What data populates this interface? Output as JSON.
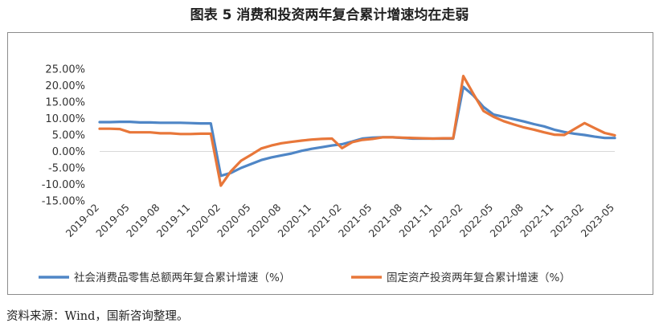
{
  "title": "图表 5 消费和投资两年复合累计增速均在走弱",
  "source": "资料来源：Wind，国新咨询整理。",
  "colors": {
    "series_1": "#4f86c6",
    "series_2": "#e8773a",
    "axis": "#d9d9d9",
    "text": "#333333"
  },
  "chart_data": {
    "type": "line",
    "title": "",
    "xlabel": "",
    "ylabel": "",
    "ylim": [
      -15,
      25
    ],
    "y_ticks": [
      25,
      20,
      15,
      10,
      5,
      0,
      -5,
      -10,
      -15
    ],
    "y_tick_labels": [
      "25.00%",
      "20.00%",
      "15.00%",
      "10.00%",
      "5.00%",
      "0.00%",
      "-5.00%",
      "-10.00%",
      "-15.00%"
    ],
    "x": [
      "2019-02",
      "2019-03",
      "2019-04",
      "2019-05",
      "2019-06",
      "2019-07",
      "2019-08",
      "2019-09",
      "2019-10",
      "2019-11",
      "2019-12",
      "2020-01",
      "2020-02",
      "2020-03",
      "2020-04",
      "2020-05",
      "2020-06",
      "2020-07",
      "2020-08",
      "2020-09",
      "2020-10",
      "2020-11",
      "2020-12",
      "2021-01",
      "2021-02",
      "2021-03",
      "2021-04",
      "2021-05",
      "2021-06",
      "2021-07",
      "2021-08",
      "2021-09",
      "2021-10",
      "2021-11",
      "2021-12",
      "2022-01",
      "2022-02",
      "2022-03",
      "2022-04",
      "2022-05",
      "2022-06",
      "2022-07",
      "2022-08",
      "2022-09",
      "2022-10",
      "2022-11",
      "2022-12",
      "2023-01",
      "2023-02",
      "2023-03",
      "2023-04",
      "2023-05"
    ],
    "x_tick_labels": [
      "2019-02",
      "2019-05",
      "2019-08",
      "2019-11",
      "2020-02",
      "2020-05",
      "2020-08",
      "2020-11",
      "2021-02",
      "2021-05",
      "2021-08",
      "2021-11",
      "2022-02",
      "2022-05",
      "2022-08",
      "2022-11",
      "2023-02",
      "2023-05"
    ],
    "legend_position": "bottom",
    "grid": false,
    "series": [
      {
        "name": "社会消费品零售总额两年复合累计增速（%）",
        "color": "#4f86c6",
        "values": [
          8.9,
          8.9,
          9.0,
          9.0,
          8.8,
          8.8,
          8.7,
          8.7,
          8.7,
          8.6,
          8.5,
          8.5,
          -7.4,
          -6.5,
          -5.0,
          -3.8,
          -2.6,
          -1.8,
          -1.2,
          -0.6,
          0.2,
          0.8,
          1.3,
          1.8,
          2.2,
          3.0,
          3.9,
          4.2,
          4.3,
          4.3,
          4.1,
          3.9,
          3.9,
          3.9,
          3.9,
          3.9,
          19.6,
          17.0,
          13.5,
          11.2,
          10.5,
          9.8,
          9.1,
          8.3,
          7.6,
          6.6,
          5.9,
          5.4,
          5.0,
          4.5,
          4.1,
          4.1
        ]
      },
      {
        "name": "固定资产投资两年复合累计增速（%）",
        "color": "#e8773a",
        "values": [
          6.9,
          6.9,
          6.8,
          5.8,
          5.8,
          5.8,
          5.5,
          5.5,
          5.3,
          5.3,
          5.4,
          5.4,
          -10.4,
          -6.0,
          -2.8,
          -1.0,
          0.9,
          1.8,
          2.5,
          2.9,
          3.3,
          3.6,
          3.8,
          3.9,
          1.0,
          2.8,
          3.5,
          3.8,
          4.3,
          4.3,
          4.2,
          4.1,
          4.0,
          3.9,
          4.0,
          4.0,
          22.9,
          17.5,
          12.3,
          10.5,
          9.2,
          8.2,
          7.3,
          6.6,
          5.8,
          5.1,
          5.0,
          6.8,
          8.6,
          7.1,
          5.6,
          4.9
        ]
      }
    ]
  }
}
